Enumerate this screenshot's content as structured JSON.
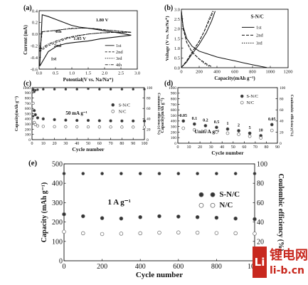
{
  "chart_data": [
    {
      "panel_label": "(a)",
      "type": "line",
      "xlabel": "Potential(V vs. Na/Na⁺)",
      "ylabel": "Current (mA)",
      "xlim": [
        0,
        3.2
      ],
      "ylim": [
        -0.6,
        0.4
      ],
      "x_ticks": [
        "0.0",
        "0.5",
        "1.0",
        "1.5",
        "2.0",
        "2.5",
        "3.0"
      ],
      "y_ticks": [
        "-0.6",
        "-0.4",
        "-0.2",
        "0.0",
        "0.2",
        "0.4"
      ],
      "annotations": [
        "1.80 V",
        "1.05 V",
        "4th",
        "2nd",
        "1st"
      ],
      "legend": [
        "1st",
        "2nd",
        "3rd",
        "4th"
      ],
      "series": [
        {
          "name": "1st",
          "x": [
            0.02,
            0.3,
            0.6,
            0.9,
            1.2,
            1.6,
            2.0,
            2.5,
            3.0,
            2.6,
            2.2,
            1.85,
            1.6,
            1.3,
            1.05,
            0.8,
            0.5,
            0.3,
            0.1,
            0.02
          ],
          "y": [
            -0.55,
            -0.3,
            -0.2,
            -0.16,
            -0.14,
            -0.12,
            -0.08,
            -0.05,
            -0.02,
            0.02,
            0.05,
            0.08,
            0.1,
            0.12,
            0.15,
            0.2,
            0.26,
            0.3,
            0.33,
            -0.55
          ]
        },
        {
          "name": "2nd",
          "x": [
            0.02,
            0.3,
            0.6,
            0.9,
            1.2,
            1.6,
            2.0,
            2.5,
            3.0,
            2.6,
            2.2,
            1.85,
            1.6,
            1.3,
            1.05,
            0.8,
            0.5,
            0.3,
            0.1,
            0.02
          ],
          "y": [
            -0.3,
            -0.2,
            -0.14,
            -0.08,
            -0.04,
            0.0,
            0.02,
            0.03,
            0.03,
            0.05,
            0.07,
            0.09,
            0.1,
            0.1,
            0.1,
            0.08,
            0.06,
            0.05,
            0.04,
            -0.3
          ]
        },
        {
          "name": "3rd",
          "x": [
            0.02,
            0.3,
            0.6,
            0.9,
            1.2,
            1.6,
            2.0,
            2.5,
            3.0,
            2.6,
            2.2,
            1.85,
            1.6,
            1.3,
            1.05,
            0.8,
            0.5,
            0.3,
            0.1,
            0.02
          ],
          "y": [
            -0.28,
            -0.18,
            -0.12,
            -0.07,
            -0.03,
            0.0,
            0.02,
            0.03,
            0.03,
            0.05,
            0.07,
            0.09,
            0.1,
            0.1,
            0.09,
            0.08,
            0.06,
            0.05,
            0.04,
            -0.28
          ]
        },
        {
          "name": "4th",
          "x": [
            0.02,
            0.3,
            0.6,
            0.9,
            1.2,
            1.6,
            2.0,
            2.5,
            3.0,
            2.6,
            2.2,
            1.85,
            1.6,
            1.3,
            1.05,
            0.8,
            0.5,
            0.3,
            0.1,
            0.02
          ],
          "y": [
            -0.26,
            -0.17,
            -0.11,
            -0.06,
            -0.03,
            0.0,
            0.02,
            0.03,
            0.03,
            0.05,
            0.07,
            0.09,
            0.1,
            0.1,
            0.09,
            0.08,
            0.06,
            0.05,
            0.04,
            -0.26
          ]
        }
      ]
    },
    {
      "panel_label": "(b)",
      "type": "line",
      "xlabel": "Capacity(mAh g⁻¹)",
      "ylabel": "Voltage (V vs. Na/Na⁺)",
      "xlim": [
        0,
        1200
      ],
      "ylim": [
        0,
        3.0
      ],
      "x_ticks": [
        "0",
        "200",
        "400",
        "600",
        "800",
        "1000",
        "1200"
      ],
      "y_ticks": [
        "0.0",
        "0.5",
        "1.0",
        "1.5",
        "2.0",
        "2.5",
        "3.0"
      ],
      "annotations": [
        "S-N/C"
      ],
      "legend": [
        "1st",
        "2nd",
        "3rd"
      ],
      "series": [
        {
          "name": "1st discharge",
          "x": [
            0,
            20,
            60,
            120,
            200,
            300,
            400,
            500,
            600,
            700,
            800,
            900,
            960
          ],
          "y": [
            2.9,
            2.1,
            1.5,
            1.1,
            0.85,
            0.7,
            0.55,
            0.45,
            0.35,
            0.25,
            0.15,
            0.06,
            0.01
          ]
        },
        {
          "name": "1st charge",
          "x": [
            0,
            60,
            120,
            200,
            280,
            340,
            380
          ],
          "y": [
            0.01,
            0.3,
            0.7,
            1.2,
            1.8,
            2.4,
            2.9
          ]
        },
        {
          "name": "2nd discharge",
          "x": [
            0,
            20,
            60,
            120,
            200,
            280,
            340
          ],
          "y": [
            2.9,
            2.0,
            1.3,
            0.8,
            0.45,
            0.2,
            0.05
          ]
        },
        {
          "name": "2nd charge",
          "x": [
            0,
            60,
            120,
            200,
            260,
            320,
            360
          ],
          "y": [
            0.01,
            0.35,
            0.8,
            1.35,
            1.9,
            2.5,
            2.9
          ]
        },
        {
          "name": "3rd discharge",
          "x": [
            0,
            20,
            60,
            120,
            200,
            260,
            320
          ],
          "y": [
            2.9,
            2.0,
            1.3,
            0.8,
            0.45,
            0.2,
            0.05
          ]
        },
        {
          "name": "3rd charge",
          "x": [
            0,
            60,
            120,
            200,
            260,
            310,
            350
          ],
          "y": [
            0.01,
            0.35,
            0.8,
            1.35,
            1.9,
            2.5,
            2.9
          ]
        }
      ]
    },
    {
      "panel_label": "(c)",
      "type": "scatter",
      "xlabel": "Cycle number",
      "ylabel": "Capacity(mAh g⁻¹)",
      "y2label": "Coulombic efficiency(%)",
      "xlim": [
        0,
        100
      ],
      "ylim": [
        0,
        1000
      ],
      "y2lim": [
        0,
        100
      ],
      "x_ticks": [
        "0",
        "10",
        "20",
        "30",
        "40",
        "50",
        "60",
        "70",
        "80",
        "90",
        "100"
      ],
      "y_ticks": [
        "0",
        "100",
        "200",
        "300",
        "400",
        "500",
        "600",
        "700",
        "800",
        "900",
        "1000"
      ],
      "y2_ticks": [
        "0",
        "20",
        "40",
        "60",
        "80",
        "100"
      ],
      "annotations": [
        "50 mA g⁻¹"
      ],
      "legend": [
        "S-N/C",
        "N/C"
      ],
      "series": [
        {
          "name": "S-N/C",
          "x": [
            1,
            2,
            3,
            5,
            10,
            20,
            30,
            40,
            50,
            60,
            70,
            80,
            90,
            100
          ],
          "y": [
            960,
            560,
            480,
            420,
            400,
            385,
            375,
            370,
            370,
            365,
            362,
            360,
            360,
            358
          ]
        },
        {
          "name": "N/C",
          "x": [
            1,
            2,
            3,
            5,
            10,
            20,
            30,
            40,
            50,
            60,
            70,
            80,
            90,
            100
          ],
          "y": [
            700,
            330,
            290,
            265,
            255,
            250,
            248,
            246,
            245,
            244,
            243,
            242,
            241,
            240
          ]
        },
        {
          "name": "S-N/C CE",
          "x": [
            1,
            2,
            3,
            5,
            10,
            20,
            30,
            40,
            50,
            60,
            70,
            80,
            90,
            100
          ],
          "y2": [
            45,
            92,
            95,
            96,
            97,
            97,
            97,
            97,
            98,
            97,
            97,
            97,
            97,
            97
          ]
        }
      ]
    },
    {
      "panel_label": "(d)",
      "type": "scatter",
      "xlabel": "Cycle number",
      "ylabel": "Capacity(mAh g⁻¹)",
      "y2label": "Coulombic efficiency(%)",
      "xlim": [
        0,
        90
      ],
      "ylim": [
        0,
        1000
      ],
      "y2lim": [
        0,
        100
      ],
      "x_ticks": [
        "0",
        "10",
        "20",
        "30",
        "40",
        "50",
        "60",
        "70",
        "80",
        "90"
      ],
      "y_ticks": [
        "0",
        "100",
        "200",
        "300",
        "400",
        "500",
        "600",
        "700",
        "800",
        "900",
        "1000"
      ],
      "y2_ticks": [
        "0",
        "20",
        "40",
        "60",
        "80",
        "100"
      ],
      "annotations": [
        "Unit: A g⁻¹"
      ],
      "rate_labels": [
        "0.05",
        "0.1",
        "0.2",
        "0.5",
        "1",
        "2",
        "5",
        "10",
        "0.05"
      ],
      "legend": [
        "S-N/C",
        "N/C"
      ],
      "series": [
        {
          "name": "S-N/C",
          "x": [
            5,
            15,
            25,
            35,
            45,
            55,
            65,
            75,
            85
          ],
          "y": [
            400,
            345,
            315,
            285,
            255,
            225,
            180,
            135,
            335
          ]
        },
        {
          "name": "N/C",
          "x": [
            5,
            15,
            25,
            35,
            45,
            55,
            65,
            75,
            85
          ],
          "y": [
            270,
            240,
            220,
            200,
            180,
            160,
            125,
            95,
            230
          ]
        }
      ]
    },
    {
      "panel_label": "(e)",
      "type": "scatter",
      "xlabel": "Cycle number",
      "ylabel": "Capacity (mAh g⁻¹)",
      "y2label": "Coulombic efficiency (%)",
      "xlim": [
        0,
        1000
      ],
      "ylim": [
        0,
        500
      ],
      "y2lim": [
        0,
        110
      ],
      "x_ticks": [
        "0",
        "200",
        "400",
        "600",
        "800",
        "1000"
      ],
      "y_ticks": [
        "0",
        "100",
        "200",
        "300",
        "400",
        "500"
      ],
      "y2_ticks": [
        "0",
        "20",
        "40",
        "60",
        "80",
        "100"
      ],
      "annotations": [
        "1 A g⁻¹"
      ],
      "legend": [
        "S-N/C",
        "N/C"
      ],
      "series": [
        {
          "name": "S-N/C",
          "x": [
            0,
            100,
            200,
            300,
            400,
            500,
            600,
            700,
            800,
            900,
            1000
          ],
          "y": [
            240,
            230,
            220,
            218,
            225,
            230,
            228,
            225,
            222,
            218,
            215
          ]
        },
        {
          "name": "N/C",
          "x": [
            0,
            100,
            200,
            300,
            400,
            500,
            600,
            700,
            800,
            900,
            1000
          ],
          "y": [
            150,
            142,
            138,
            140,
            142,
            145,
            146,
            145,
            143,
            142,
            140
          ]
        },
        {
          "name": "S-N/C CE",
          "x": [
            0,
            100,
            200,
            300,
            400,
            500,
            600,
            700,
            800,
            900,
            1000
          ],
          "y2": [
            99,
            99,
            99,
            99,
            99,
            99,
            99,
            99,
            99,
            99,
            99
          ]
        }
      ]
    }
  ],
  "watermark": {
    "title": "锂电网",
    "site": "li-b.cn",
    "logo_letter": "Li",
    "color": "#c8281e"
  }
}
